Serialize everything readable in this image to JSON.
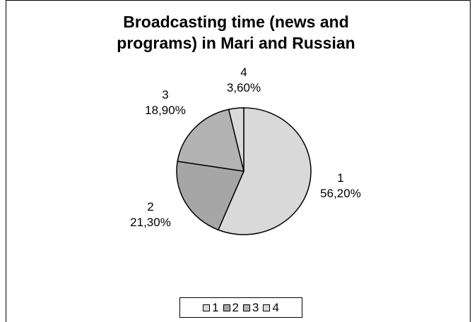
{
  "chart_data": {
    "type": "pie",
    "title_lines": [
      "Broadcasting time (news and",
      "programs) in Mari and Russian"
    ],
    "slices": [
      {
        "category": "1",
        "value": 56.2,
        "label": "56,20%",
        "color": "#d9d9d9"
      },
      {
        "category": "2",
        "value": 21.3,
        "label": "21,30%",
        "color": "#a6a6a6"
      },
      {
        "category": "3",
        "value": 18.9,
        "label": "18,90%",
        "color": "#b3b3b3"
      },
      {
        "category": "4",
        "value": 3.6,
        "label": "3,60%",
        "color": "#d9d9d9"
      }
    ],
    "legend": {
      "position": "bottom",
      "entries": [
        "1",
        "2",
        "3",
        "4"
      ]
    }
  }
}
